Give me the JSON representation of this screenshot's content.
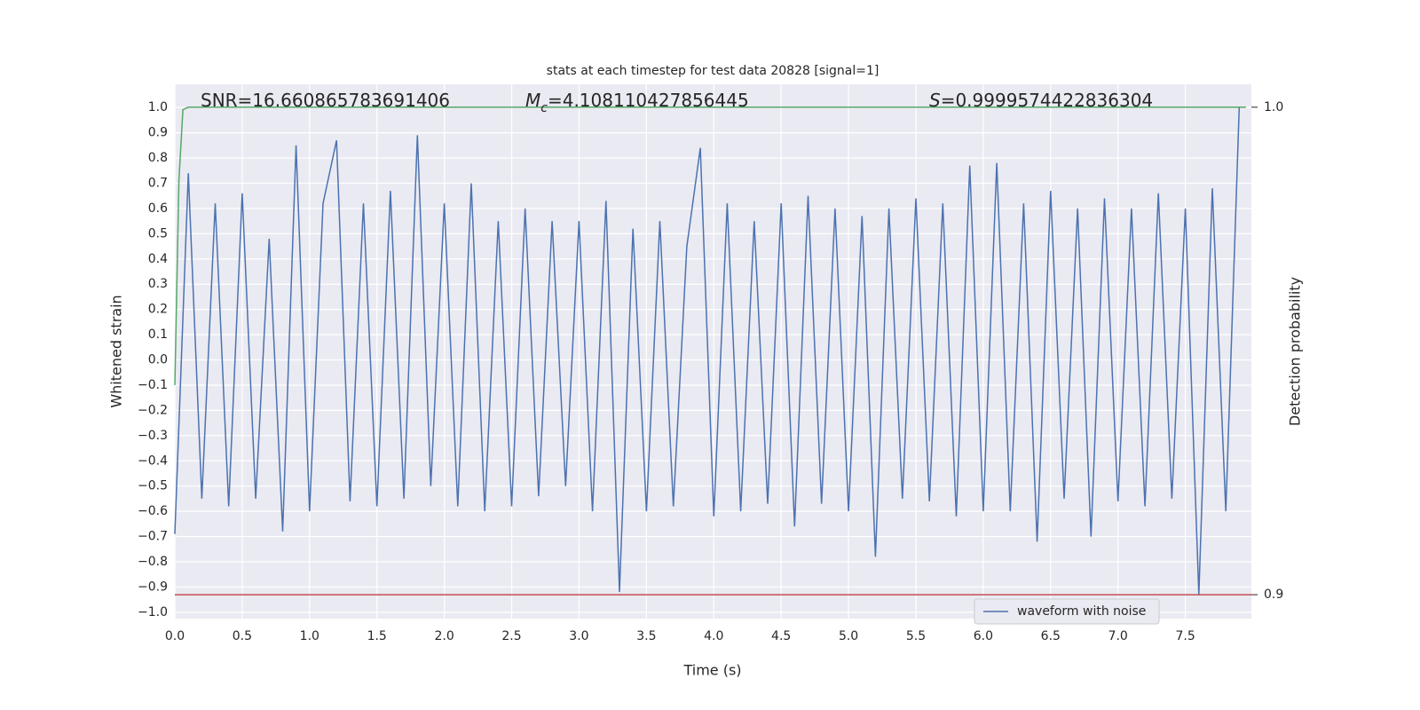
{
  "chart_data": {
    "type": "line",
    "title": "stats at each timestep for test data 20828 [signal=1]",
    "xlabel": "Time (s)",
    "ylabel": "Whitened strain",
    "y2label": "Detection probability",
    "annotations": [
      {
        "text": "SNR=16.660865783691406"
      },
      {
        "symbol": "M",
        "sub": "c",
        "text": "=4.108110427856445"
      },
      {
        "symbol": "S",
        "text": "=0.9999574422836304"
      }
    ],
    "x": [
      0.0,
      0.1,
      0.2,
      0.3,
      0.4,
      0.5,
      0.6,
      0.7,
      0.8,
      0.9,
      1.0,
      1.1,
      1.2,
      1.3,
      1.4,
      1.5,
      1.6,
      1.7,
      1.8,
      1.9,
      2.0,
      2.1,
      2.2,
      2.3,
      2.4,
      2.5,
      2.6,
      2.7,
      2.8,
      2.9,
      3.0,
      3.1,
      3.2,
      3.3,
      3.4,
      3.5,
      3.6,
      3.7,
      3.8,
      3.9,
      4.0,
      4.1,
      4.2,
      4.3,
      4.4,
      4.5,
      4.6,
      4.7,
      4.8,
      4.9,
      5.0,
      5.1,
      5.2,
      5.3,
      5.4,
      5.5,
      5.6,
      5.7,
      5.8,
      5.9,
      6.0,
      6.1,
      6.2,
      6.3,
      6.4,
      6.5,
      6.6,
      6.7,
      6.8,
      6.9,
      7.0,
      7.1,
      7.2,
      7.3,
      7.4,
      7.5,
      7.6,
      7.7,
      7.8,
      7.9
    ],
    "series": [
      {
        "name": "waveform with noise",
        "color": "#4c72b0",
        "values": [
          -0.69,
          0.74,
          -0.55,
          0.62,
          -0.58,
          0.66,
          -0.55,
          0.48,
          -0.68,
          0.85,
          -0.6,
          0.62,
          0.87,
          -0.56,
          0.62,
          -0.58,
          0.67,
          -0.55,
          0.89,
          -0.5,
          0.62,
          -0.58,
          0.7,
          -0.6,
          0.55,
          -0.58,
          0.6,
          -0.54,
          0.55,
          -0.5,
          0.55,
          -0.6,
          0.63,
          -0.92,
          0.52,
          -0.6,
          0.55,
          -0.58,
          0.45,
          0.84,
          -0.62,
          0.62,
          -0.6,
          0.55,
          -0.57,
          0.62,
          -0.66,
          0.65,
          -0.57,
          0.6,
          -0.6,
          0.57,
          -0.78,
          0.6,
          -0.55,
          0.64,
          -0.56,
          0.62,
          -0.62,
          0.77,
          -0.6,
          0.78,
          -0.6,
          0.62,
          -0.72,
          0.67,
          -0.55,
          0.6,
          -0.7,
          0.64,
          -0.56,
          0.6,
          -0.58,
          0.66,
          -0.55,
          0.6,
          -0.93,
          0.68,
          -0.6,
          1.0
        ]
      },
      {
        "color": "#55a868",
        "axis": "y2",
        "x": [
          0.0,
          0.03,
          0.06,
          0.1,
          7.95
        ],
        "values": [
          0.943,
          0.985,
          0.9995,
          1.0,
          1.0
        ]
      }
    ],
    "hlines": [
      {
        "value": 0.9,
        "axis": "y2",
        "color": "#c44e52"
      }
    ],
    "xlim": [
      0,
      7.99
    ],
    "ylim": [
      -1.025,
      1.092
    ],
    "y2lim": [
      0.8951,
      1.0047
    ],
    "xticks": [
      {
        "value": 0,
        "label": "0.0"
      },
      {
        "value": 0.5,
        "label": "0.5"
      },
      {
        "value": 1,
        "label": "1.0"
      },
      {
        "value": 1.5,
        "label": "1.5"
      },
      {
        "value": 2,
        "label": "2.0"
      },
      {
        "value": 2.5,
        "label": "2.5"
      },
      {
        "value": 3,
        "label": "3.0"
      },
      {
        "value": 3.5,
        "label": "3.5"
      },
      {
        "value": 4,
        "label": "4.0"
      },
      {
        "value": 4.5,
        "label": "4.5"
      },
      {
        "value": 5,
        "label": "5.0"
      },
      {
        "value": 5.5,
        "label": "5.5"
      },
      {
        "value": 6,
        "label": "6.0"
      },
      {
        "value": 6.5,
        "label": "6.5"
      },
      {
        "value": 7,
        "label": "7.0"
      },
      {
        "value": 7.5,
        "label": "7.5"
      }
    ],
    "yticks": [
      {
        "value": -1,
        "label": "−1.0"
      },
      {
        "value": -0.9,
        "label": "−0.9"
      },
      {
        "value": -0.8,
        "label": "−0.8"
      },
      {
        "value": -0.7,
        "label": "−0.7"
      },
      {
        "value": -0.6,
        "label": "−0.6"
      },
      {
        "value": -0.5,
        "label": "−0.5"
      },
      {
        "value": -0.4,
        "label": "−0.4"
      },
      {
        "value": -0.3,
        "label": "−0.3"
      },
      {
        "value": -0.2,
        "label": "−0.2"
      },
      {
        "value": -0.1,
        "label": "−0.1"
      },
      {
        "value": 0,
        "label": "0.0"
      },
      {
        "value": 0.1,
        "label": "0.1"
      },
      {
        "value": 0.2,
        "label": "0.2"
      },
      {
        "value": 0.3,
        "label": "0.3"
      },
      {
        "value": 0.4,
        "label": "0.4"
      },
      {
        "value": 0.5,
        "label": "0.5"
      },
      {
        "value": 0.6,
        "label": "0.6"
      },
      {
        "value": 0.7,
        "label": "0.7"
      },
      {
        "value": 0.8,
        "label": "0.8"
      },
      {
        "value": 0.9,
        "label": "0.9"
      },
      {
        "value": 1,
        "label": "1.0"
      }
    ],
    "y2ticks": [
      {
        "value": 0.9,
        "label": "0.9"
      },
      {
        "value": 1,
        "label": "1.0"
      }
    ],
    "grid": true,
    "legend": "lower right"
  }
}
